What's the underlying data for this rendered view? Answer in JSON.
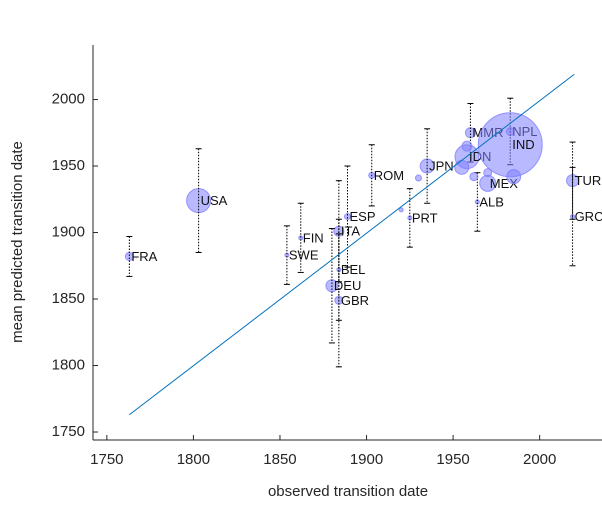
{
  "chart_data": {
    "type": "scatter",
    "xlabel": "observed transition date",
    "ylabel": "mean predicted transition date",
    "labels": [
      "FRA",
      "USA",
      "SWE",
      "FIN",
      "ITA",
      "ESP",
      "BEL",
      "DEU",
      "GBR",
      "ROM",
      "PRT",
      "JPN",
      "MMR",
      "IDN",
      "MEX",
      "ALB",
      "NPL",
      "IND",
      "TUR",
      "GRC",
      null,
      null,
      null,
      null,
      null,
      null,
      null
    ],
    "x": [
      1763,
      1803,
      1854,
      1862,
      1884,
      1889,
      1884,
      1880,
      1884,
      1903,
      1925,
      1935,
      1960,
      1958,
      1970,
      1964,
      1983,
      1983,
      2019,
      2019,
      1920,
      1930,
      1955,
      1962,
      1985,
      1970,
      1958
    ],
    "y": [
      1882,
      1924,
      1883,
      1896,
      1901,
      1912,
      1872,
      1860,
      1849,
      1943,
      1911,
      1950,
      1975,
      1957,
      1937,
      1923,
      1976,
      1966,
      1939,
      1912,
      1917,
      1941,
      1949,
      1942,
      1942,
      1945,
      1965
    ],
    "sizes": [
      4,
      12,
      2,
      2,
      5,
      3,
      2,
      6,
      4,
      3,
      2,
      7,
      5,
      12,
      8,
      2,
      4,
      32,
      6,
      2,
      2,
      3,
      7,
      4,
      7,
      4,
      5
    ],
    "errors": [
      15,
      39,
      22,
      26,
      38,
      38,
      38,
      43,
      50,
      23,
      22,
      28,
      22,
      null,
      null,
      22,
      25,
      null,
      29,
      37,
      null,
      null,
      null,
      null,
      null,
      null,
      null
    ],
    "color": "#8080ff",
    "fit_line": {
      "x": [
        1763,
        2020
      ],
      "y": [
        1763,
        2019
      ],
      "color": "#0072bd"
    },
    "xlim": [
      1742,
      2036
    ],
    "ylim": [
      1744,
      2041
    ],
    "xticks": [
      1750,
      1800,
      1850,
      1900,
      1950,
      2000
    ],
    "yticks": [
      1750,
      1800,
      1850,
      1900,
      1950,
      2000
    ]
  }
}
